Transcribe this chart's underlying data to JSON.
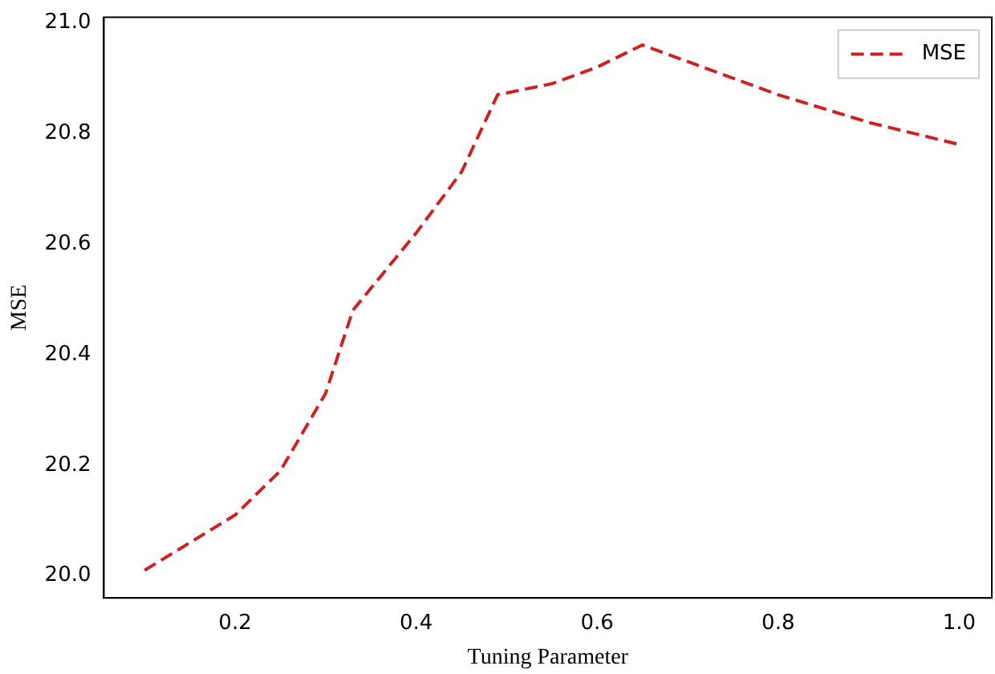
{
  "chart_data": {
    "type": "line",
    "xlabel": "Tuning Parameter",
    "ylabel": "MSE",
    "x": [
      0.1,
      0.15,
      0.2,
      0.25,
      0.3,
      0.33,
      0.4,
      0.45,
      0.49,
      0.55,
      0.6,
      0.65,
      0.7,
      0.8,
      0.9,
      1.0
    ],
    "series": [
      {
        "name": "MSE",
        "color": "#cc2222",
        "values": [
          20.01,
          20.06,
          20.11,
          20.19,
          20.33,
          20.48,
          20.62,
          20.73,
          20.87,
          20.89,
          20.92,
          20.96,
          20.93,
          20.87,
          20.82,
          20.78
        ]
      }
    ],
    "xlim": [
      0.055,
      1.036
    ],
    "xticks": [
      {
        "value": 0.2,
        "label": "0.2"
      },
      {
        "value": 0.4,
        "label": "0.4"
      },
      {
        "value": 0.6,
        "label": "0.6"
      },
      {
        "value": 0.8,
        "label": "0.8"
      },
      {
        "value": 1.0,
        "label": "1.0"
      }
    ],
    "ylim": [
      19.96,
      21.01
    ],
    "yticks": [
      {
        "value": 20.0,
        "label": "20.0"
      },
      {
        "value": 20.2,
        "label": "20.2"
      },
      {
        "value": 20.4,
        "label": "20.4"
      },
      {
        "value": 20.6,
        "label": "20.6"
      },
      {
        "value": 20.8,
        "label": "20.8"
      },
      {
        "value": 21.0,
        "label": "21.0"
      }
    ],
    "grid": false,
    "legend": "top right",
    "line_style": "dashed",
    "marker": "none"
  }
}
